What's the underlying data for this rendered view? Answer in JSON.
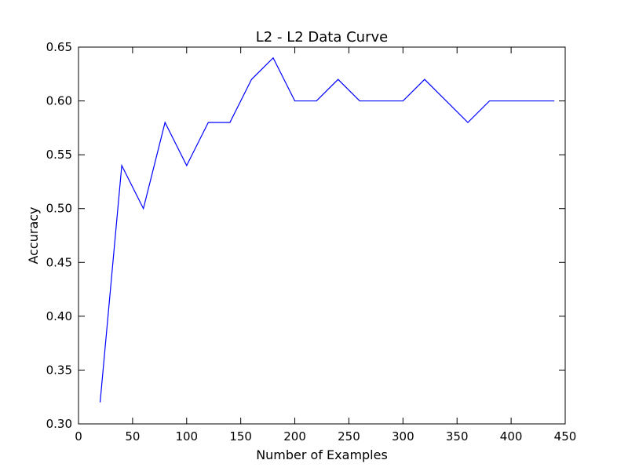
{
  "chart_data": {
    "type": "line",
    "title": "L2 - L2 Data Curve",
    "xlabel": "Number of Examples",
    "ylabel": "Accuracy",
    "xlim": [
      0,
      450
    ],
    "ylim": [
      0.3,
      0.65
    ],
    "xticks": [
      0,
      50,
      100,
      150,
      200,
      250,
      300,
      350,
      400,
      450
    ],
    "xtick_labels": [
      "0",
      "50",
      "100",
      "150",
      "200",
      "250",
      "300",
      "350",
      "400",
      "450"
    ],
    "yticks": [
      0.3,
      0.35,
      0.4,
      0.45,
      0.5,
      0.55,
      0.6,
      0.65
    ],
    "ytick_labels": [
      "0.30",
      "0.35",
      "0.40",
      "0.45",
      "0.50",
      "0.55",
      "0.60",
      "0.65"
    ],
    "grid": false,
    "series": [
      {
        "color": "#0000ff",
        "x": [
          20,
          40,
          60,
          80,
          100,
          120,
          140,
          160,
          180,
          200,
          220,
          240,
          260,
          280,
          300,
          320,
          340,
          360,
          380,
          400,
          420,
          440
        ],
        "y": [
          0.32,
          0.54,
          0.5,
          0.58,
          0.54,
          0.58,
          0.58,
          0.62,
          0.64,
          0.6,
          0.6,
          0.62,
          0.6,
          0.6,
          0.6,
          0.62,
          0.6,
          0.58,
          0.6,
          0.6,
          0.6,
          0.6
        ]
      }
    ]
  }
}
